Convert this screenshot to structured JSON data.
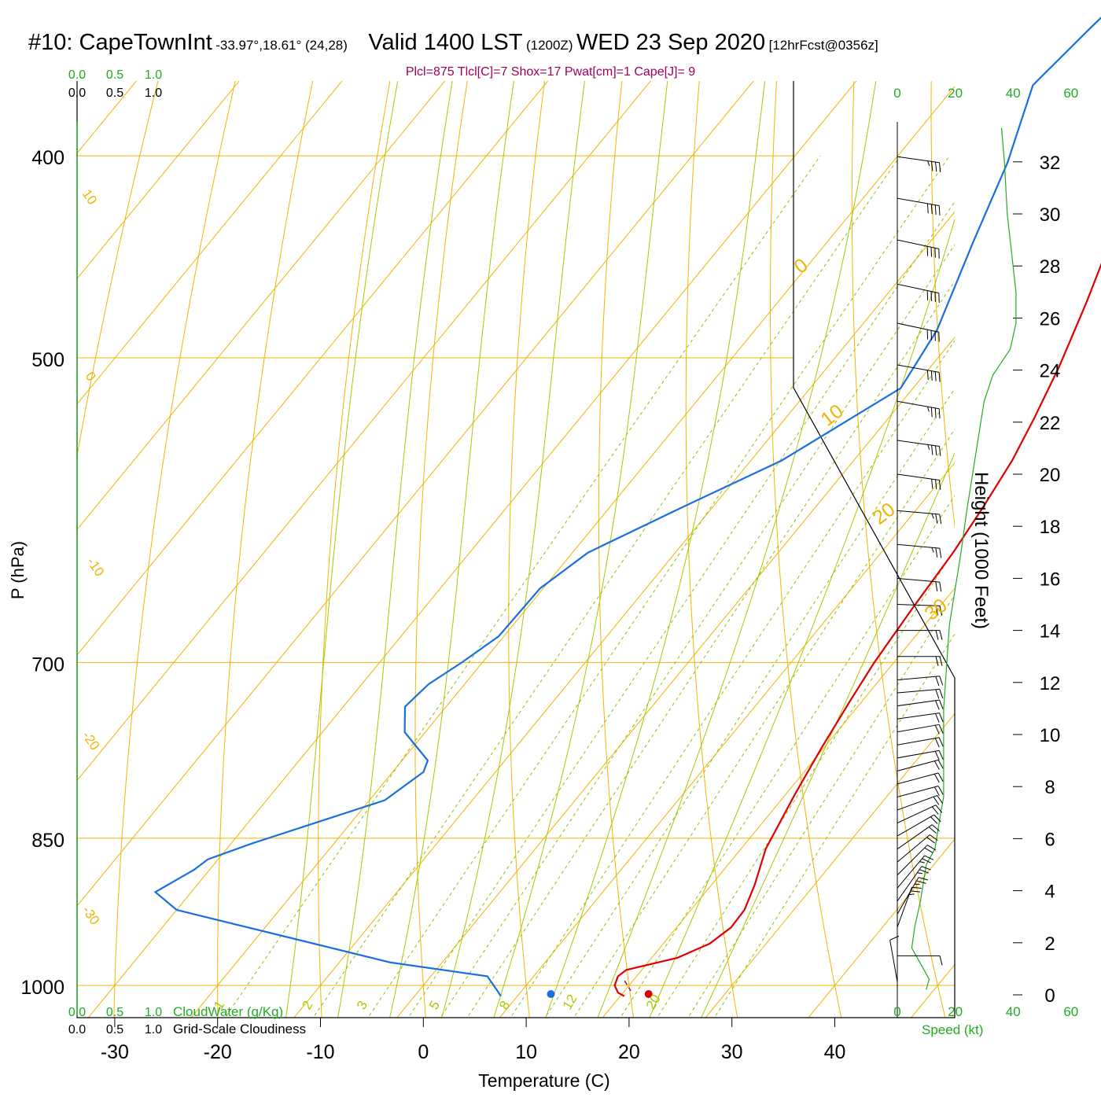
{
  "title": {
    "station": "#10: CapeTownInt",
    "coords": "-33.97°,18.61° (24,28)",
    "valid": "Valid 1400 LST",
    "zulu": "(1200Z)",
    "date": "WED 23 Sep 2020",
    "forecast": "[12hrFcst@0356z]"
  },
  "parcel_info": "Plcl=875 Tlcl[C]=7 Shox=17 Pwat[cm]=1 Cape[J]= 9",
  "colors": {
    "isobar": "#f0b400",
    "temperature": "#e00000",
    "dewpoint": "#1a6fe0",
    "mixing_ratio": "#90c000",
    "moist_adiabat": "#a8c800",
    "cloud_green": "#22aa22",
    "parcel_text": "#a0005a"
  },
  "left_scales": {
    "cloudwater_ticks": [
      "0.0",
      "0.5",
      "1.0"
    ],
    "cloudiness_ticks": [
      "0.0",
      "0.5",
      "1.0"
    ],
    "cloudwater_label": "CloudWater (g/Kg)",
    "cloudiness_label": "Grid-Scale Cloudiness"
  },
  "wind_speed_axis": {
    "ticks": [
      "0",
      "20",
      "40",
      "60"
    ],
    "label": "Speed (kt)",
    "range_kt": [
      0,
      60
    ]
  },
  "chart_data": {
    "type": "line",
    "title": "",
    "xlabel": "Temperature (C)",
    "ylabel": "P (hPa)",
    "y2label": "Height (1000 Feet)",
    "x_range_c": [
      -35,
      46
    ],
    "p_range_hpa": [
      1050,
      250
    ],
    "y_scale": "log",
    "x_ticks": [
      -30,
      -20,
      -10,
      0,
      10,
      20,
      30,
      40
    ],
    "pressure_ticks": [
      250,
      300,
      400,
      500,
      700,
      850,
      1000
    ],
    "height_ticks_kft": [
      0,
      2,
      4,
      6,
      8,
      10,
      12,
      14,
      16,
      18,
      20,
      22,
      24,
      26,
      28,
      30,
      32
    ],
    "dry_adiabat_labels": [
      "10",
      "0",
      "-10",
      "-20",
      "-30",
      "0",
      "10",
      "20",
      "30"
    ],
    "mixing_ratio_labels": [
      "1",
      "2",
      "3",
      "5",
      "8",
      "12",
      "20"
    ],
    "series": [
      {
        "key": "temperature",
        "values": [
          [
            20.4,
            1012
          ],
          [
            19.5,
            1008
          ],
          [
            18.6,
            1000
          ],
          [
            18.2,
            990
          ],
          [
            18.5,
            983
          ],
          [
            22.5,
            970
          ],
          [
            24.5,
            955
          ],
          [
            25.3,
            938
          ],
          [
            25.2,
            920
          ],
          [
            24.2,
            895
          ],
          [
            22.4,
            860
          ],
          [
            20.9,
            810
          ],
          [
            19.8,
            770
          ],
          [
            18.8,
            730
          ],
          [
            18.1,
            700
          ],
          [
            17.5,
            660
          ],
          [
            17.0,
            620
          ],
          [
            16.3,
            590
          ],
          [
            15.4,
            560
          ],
          [
            14.2,
            535
          ],
          [
            12.5,
            505
          ],
          [
            10.0,
            470
          ],
          [
            7.5,
            440
          ],
          [
            4.5,
            410
          ],
          [
            1.0,
            380
          ],
          [
            -3.0,
            350
          ],
          [
            -7.0,
            320
          ],
          [
            -12.0,
            295
          ],
          [
            -17.0,
            270
          ],
          [
            -20.3,
            255
          ]
        ]
      },
      {
        "key": "dewpoint",
        "values": [
          [
            8.4,
            1012
          ],
          [
            7.5,
            1005
          ],
          [
            5.5,
            990
          ],
          [
            -5.0,
            975
          ],
          [
            -30.0,
            920
          ],
          [
            -33.5,
            902
          ],
          [
            -31.5,
            880
          ],
          [
            -31.0,
            870
          ],
          [
            -28.0,
            855
          ],
          [
            -18.5,
            815
          ],
          [
            -17.0,
            790
          ],
          [
            -17.5,
            780
          ],
          [
            -22.0,
            756
          ],
          [
            -24.0,
            735
          ],
          [
            -23.5,
            717
          ],
          [
            -22.0,
            700
          ],
          [
            -20.5,
            680
          ],
          [
            -20.3,
            645
          ],
          [
            -18.5,
            620
          ],
          [
            -13.0,
            590
          ],
          [
            -7.0,
            560
          ],
          [
            -1.2,
            517
          ],
          [
            -2.3,
            485
          ],
          [
            -5.8,
            440
          ],
          [
            -8.8,
            403
          ],
          [
            -12.5,
            370
          ],
          [
            -11.5,
            348
          ],
          [
            -10.5,
            330
          ],
          [
            -9.0,
            310
          ],
          [
            -8.5,
            302
          ],
          [
            -9.0,
            285
          ],
          [
            -10.5,
            265
          ]
        ]
      }
    ],
    "surface_points": [
      {
        "key": "temperature",
        "t": 21.9,
        "p": 1012
      },
      {
        "key": "dewpoint",
        "t": 12.4,
        "p": 1012
      }
    ],
    "parcel_segment": [
      [
        19.2,
        995
      ],
      [
        20.6,
        1006
      ]
    ],
    "wind_speed_profile": {
      "unit": "kt",
      "values": [
        [
          10,
          0.2
        ],
        [
          11,
          0.6
        ],
        [
          7,
          1.4
        ],
        [
          5,
          1.8
        ],
        [
          6,
          2.6
        ],
        [
          8,
          3.6
        ],
        [
          10,
          5.0
        ],
        [
          13,
          5.6
        ],
        [
          14,
          6.3
        ],
        [
          15,
          7.0
        ],
        [
          16,
          7.6
        ],
        [
          16,
          8.6
        ],
        [
          16,
          9.8
        ],
        [
          16,
          11.0
        ],
        [
          17,
          12.6
        ],
        [
          18,
          14.2
        ],
        [
          20,
          15.6
        ],
        [
          22,
          17.0
        ],
        [
          24,
          18.6
        ],
        [
          26,
          20.0
        ],
        [
          28,
          21.4
        ],
        [
          30,
          22.8
        ],
        [
          33,
          23.8
        ],
        [
          39,
          24.8
        ],
        [
          41,
          25.8
        ],
        [
          41,
          27.0
        ],
        [
          40,
          28.0
        ],
        [
          38,
          30.0
        ],
        [
          37,
          32.0
        ],
        [
          36,
          33.3
        ]
      ]
    },
    "wind_barbs": [
      {
        "h": 0.5,
        "dir": 170,
        "kt": 10
      },
      {
        "h": 1.5,
        "dir": 270,
        "kt": 10
      },
      {
        "h": 2.6,
        "dir": 200,
        "kt": 25
      },
      {
        "h": 3.1,
        "dir": 210,
        "kt": 25
      },
      {
        "h": 3.6,
        "dir": 215,
        "kt": 25
      },
      {
        "h": 4.1,
        "dir": 220,
        "kt": 25
      },
      {
        "h": 4.6,
        "dir": 225,
        "kt": 20
      },
      {
        "h": 5.1,
        "dir": 230,
        "kt": 20
      },
      {
        "h": 5.6,
        "dir": 235,
        "kt": 20
      },
      {
        "h": 6.1,
        "dir": 240,
        "kt": 20
      },
      {
        "h": 6.6,
        "dir": 245,
        "kt": 20
      },
      {
        "h": 7.1,
        "dir": 250,
        "kt": 20
      },
      {
        "h": 7.6,
        "dir": 255,
        "kt": 20
      },
      {
        "h": 8.1,
        "dir": 255,
        "kt": 20
      },
      {
        "h": 8.6,
        "dir": 255,
        "kt": 20
      },
      {
        "h": 9.1,
        "dir": 260,
        "kt": 20
      },
      {
        "h": 9.6,
        "dir": 260,
        "kt": 20
      },
      {
        "h": 10.1,
        "dir": 260,
        "kt": 20
      },
      {
        "h": 10.6,
        "dir": 262,
        "kt": 20
      },
      {
        "h": 11.1,
        "dir": 262,
        "kt": 20
      },
      {
        "h": 11.6,
        "dir": 265,
        "kt": 20
      },
      {
        "h": 12.1,
        "dir": 265,
        "kt": 20
      },
      {
        "h": 13.0,
        "dir": 270,
        "kt": 20
      },
      {
        "h": 14.0,
        "dir": 270,
        "kt": 20
      },
      {
        "h": 15.0,
        "dir": 272,
        "kt": 20
      },
      {
        "h": 16.0,
        "dir": 275,
        "kt": 20
      },
      {
        "h": 17.3,
        "dir": 275,
        "kt": 25
      },
      {
        "h": 18.6,
        "dir": 275,
        "kt": 25
      },
      {
        "h": 20.0,
        "dir": 278,
        "kt": 30
      },
      {
        "h": 21.3,
        "dir": 278,
        "kt": 35
      },
      {
        "h": 22.8,
        "dir": 280,
        "kt": 35
      },
      {
        "h": 24.2,
        "dir": 280,
        "kt": 40
      },
      {
        "h": 25.8,
        "dir": 282,
        "kt": 40
      },
      {
        "h": 27.3,
        "dir": 282,
        "kt": 40
      },
      {
        "h": 29.0,
        "dir": 282,
        "kt": 40
      },
      {
        "h": 30.6,
        "dir": 280,
        "kt": 40
      },
      {
        "h": 32.2,
        "dir": 278,
        "kt": 35
      }
    ]
  }
}
